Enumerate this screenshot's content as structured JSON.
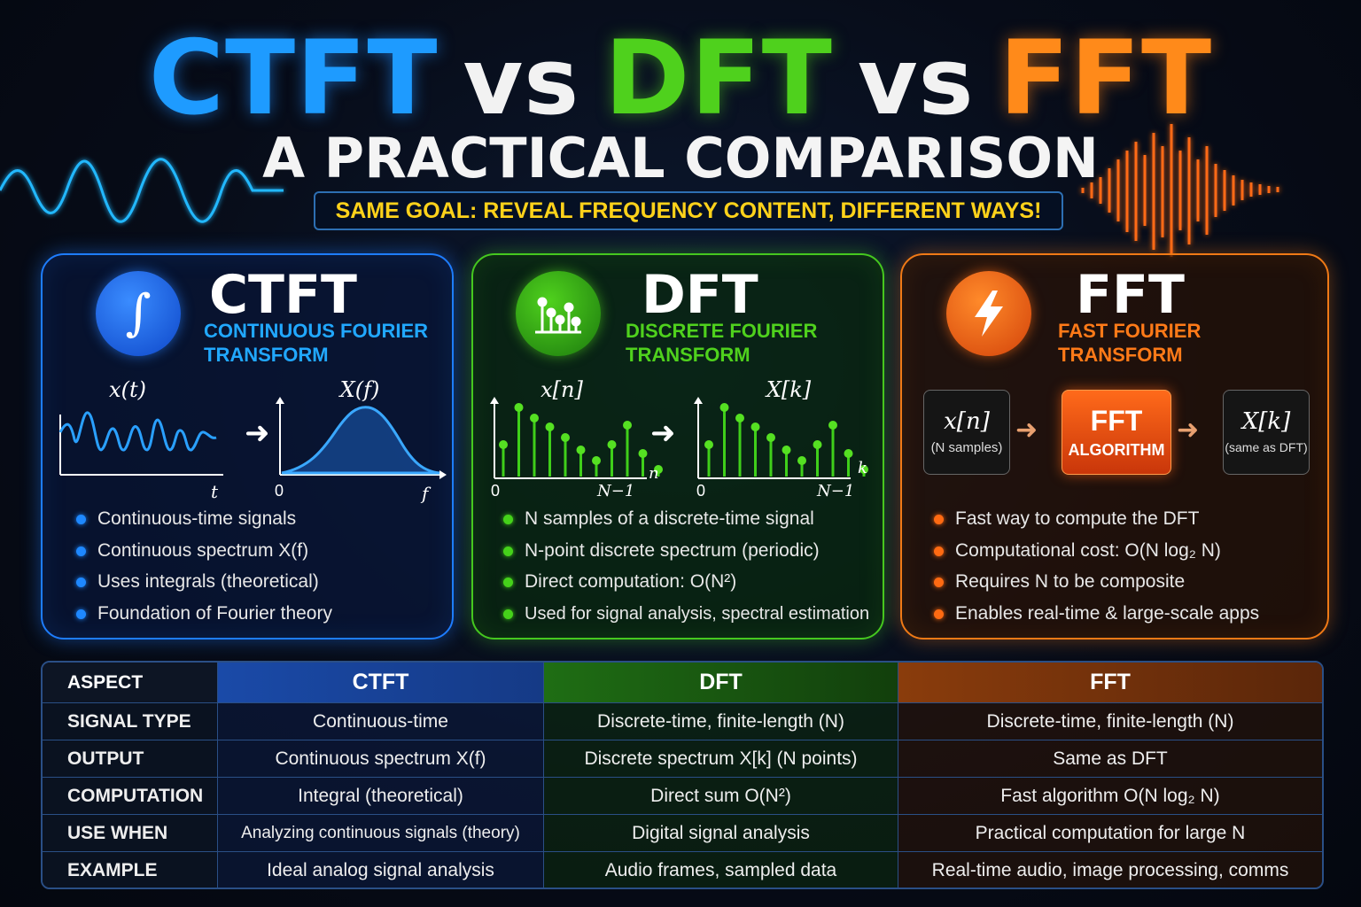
{
  "title": {
    "part1": "CTFT",
    "vs1": "vs",
    "part2": "DFT",
    "vs2": "vs",
    "part3": "FFT"
  },
  "subtitle": "A PRACTICAL COMPARISON",
  "tagline": "SAME GOAL: REVEAL FREQUENCY CONTENT, DIFFERENT WAYS!",
  "colors": {
    "ctft": "#1e9bff",
    "dft": "#4fd11d",
    "fft": "#ff8a1a",
    "tagline": "#ffd21a"
  },
  "ctft": {
    "icon": "integral-icon",
    "title": "CTFT",
    "subtitle_line1": "CONTINUOUS FOURIER",
    "subtitle_line2": "TRANSFORM",
    "graph_left_label": "x(t)",
    "graph_left_axis": "t",
    "graph_right_label": "X(f)",
    "graph_right_axis_zero": "0",
    "graph_right_axis": "f",
    "bullets": [
      "Continuous-time signals",
      "Continuous spectrum X(f)",
      "Uses integrals (theoretical)",
      "Foundation of Fourier theory"
    ]
  },
  "dft": {
    "icon": "stem-plot-icon",
    "title": "DFT",
    "subtitle_line1": "DISCRETE FOURIER",
    "subtitle_line2": "TRANSFORM",
    "graph_left_label": "x[n]",
    "graph_left_axis": "n",
    "graph_left_zero": "0",
    "graph_left_end": "N−1",
    "graph_right_label": "X[k]",
    "graph_right_axis": "k",
    "graph_right_zero": "0",
    "graph_right_end": "N−1",
    "bullets": [
      "N samples of a discrete-time signal",
      "N-point discrete spectrum (periodic)",
      "Direct computation: O(N²)",
      "Used for signal analysis, spectral estimation"
    ]
  },
  "fft": {
    "icon": "lightning-bolt-icon",
    "title": "FFT",
    "subtitle_line1": "FAST FOURIER",
    "subtitle_line2": "TRANSFORM",
    "flow_input": "x[n]",
    "flow_input_note": "(N samples)",
    "flow_algo_title": "FFT",
    "flow_algo_sub": "ALGORITHM",
    "flow_output": "X[k]",
    "flow_output_note": "(same as DFT)",
    "bullets": [
      "Fast way to compute the DFT",
      "Computational cost: O(N log₂ N)",
      "Requires N to be composite",
      "Enables real-time & large-scale apps"
    ]
  },
  "table": {
    "headers": [
      "ASPECT",
      "CTFT",
      "DFT",
      "FFT"
    ],
    "rows": [
      [
        "SIGNAL TYPE",
        "Continuous-time",
        "Discrete-time, finite-length (N)",
        "Discrete-time, finite-length (N)"
      ],
      [
        "OUTPUT",
        "Continuous spectrum X(f)",
        "Discrete spectrum X[k] (N points)",
        "Same as DFT"
      ],
      [
        "COMPUTATION",
        "Integral (theoretical)",
        "Direct sum O(N²)",
        "Fast algorithm O(N log₂ N)"
      ],
      [
        "USE WHEN",
        "Analyzing continuous signals (theory)",
        "Digital signal analysis",
        "Practical computation for large N"
      ],
      [
        "EXAMPLE",
        "Ideal analog signal analysis",
        "Audio frames, sampled data",
        "Real-time audio, image processing, comms"
      ]
    ]
  }
}
